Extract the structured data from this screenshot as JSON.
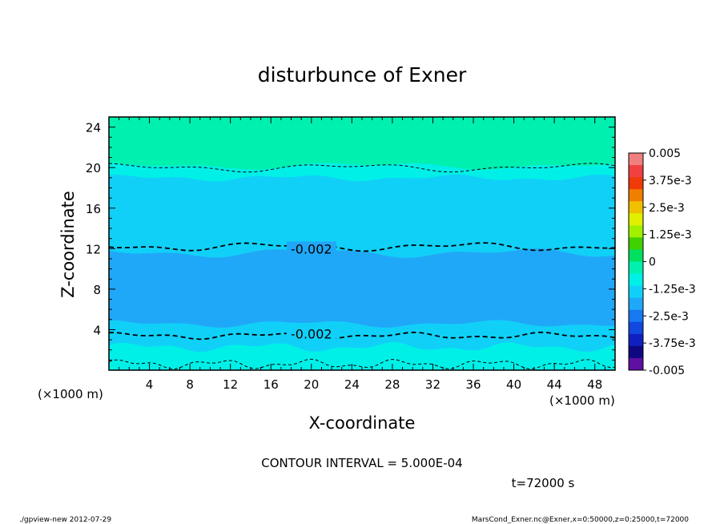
{
  "chart_data": {
    "type": "heatmap",
    "title": "disturbunce of Exner",
    "xlabel": "X-coordinate",
    "ylabel": "Z-coordinate",
    "x_unit": "(×1000 m)",
    "y_unit": "(×1000 m)",
    "xlim": [
      0,
      50
    ],
    "ylim": [
      0,
      25
    ],
    "x_ticks": [
      4,
      8,
      12,
      16,
      20,
      24,
      28,
      32,
      36,
      40,
      44,
      48
    ],
    "y_ticks": [
      4,
      8,
      12,
      16,
      20,
      24
    ],
    "contour_interval_text": "CONTOUR INTERVAL = 5.000E-04",
    "time_text": "t=72000 s",
    "footer_left": "./gpview-new  2012-07-29",
    "footer_right": "MarsCond_Exner.nc@Exner,x=0:50000,z=0:25000,t=72000",
    "colorbar": {
      "min": -0.005,
      "max": 0.005,
      "tick_labels": [
        "0.005",
        "3.75e-3",
        "2.5e-3",
        "1.25e-3",
        "0",
        "-1.25e-3",
        "-2.5e-3",
        "-3.75e-3",
        "-0.005"
      ],
      "colors": [
        "#f07f7f",
        "#f04040",
        "#f03a0a",
        "#f07f00",
        "#f0c000",
        "#e0f000",
        "#a0f000",
        "#40d000",
        "#00e060",
        "#00f0b0",
        "#00f0e8",
        "#10d0f8",
        "#20a8f8",
        "#1878f0",
        "#1048e0",
        "#1020c0",
        "#100880",
        "#6010a0"
      ]
    },
    "bands": [
      {
        "range": "(-0.002, -0.0015)",
        "color": "#00f0e8",
        "z_approx": [
          0,
          2
        ]
      },
      {
        "range": "(-0.0025, -0.002)",
        "color": "#10d0f8",
        "z_approx": [
          2,
          4
        ]
      },
      {
        "range": "(-0.003, -0.0025)",
        "color": "#20a8f8",
        "z_approx": [
          4,
          12
        ]
      },
      {
        "range": "(-0.0025, -0.002)",
        "color": "#10d0f8",
        "z_approx": [
          12,
          19.5
        ]
      },
      {
        "range": "(-0.002, -0.0015)",
        "color": "#00f0e8",
        "z_approx": [
          18,
          20
        ]
      },
      {
        "range": "(-0.0015, -0.001)",
        "color": "#00f0b0",
        "z_approx": [
          20,
          25
        ]
      }
    ],
    "contour_labels": [
      {
        "text": "-0.002",
        "x": 20,
        "z": 12
      },
      {
        "text": "-0.002",
        "x": 20,
        "z": 3.6
      }
    ]
  }
}
